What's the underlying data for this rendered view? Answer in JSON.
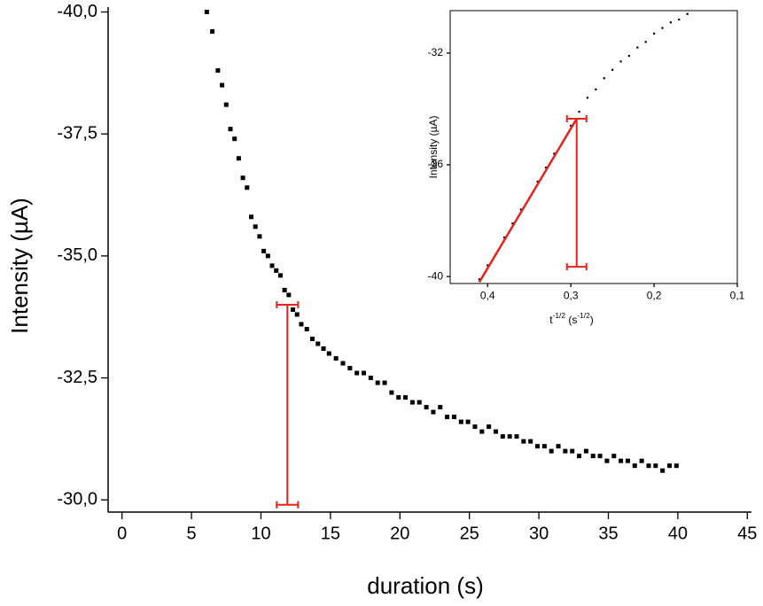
{
  "chart_data": [
    {
      "type": "scatter",
      "x_label": "duration (s)",
      "y_label": "Intensity (µA)",
      "color": "#000000",
      "xlim": [
        -1,
        45.3
      ],
      "ylim": [
        -29.75,
        -40.1
      ],
      "xticks": [
        0,
        5,
        10,
        15,
        20,
        25,
        30,
        35,
        40,
        45
      ],
      "yticks": [
        {
          "value": -40,
          "label": "-40,0"
        },
        {
          "value": -37.5,
          "label": "-37,5"
        },
        {
          "value": -35,
          "label": "-35,0"
        },
        {
          "value": -32.5,
          "label": "-32,5"
        },
        {
          "value": -30,
          "label": "-30,0"
        }
      ],
      "x": [
        6.1,
        6.5,
        6.9,
        7.2,
        7.5,
        7.8,
        8.1,
        8.4,
        8.7,
        9.0,
        9.3,
        9.6,
        9.9,
        10.2,
        10.5,
        10.8,
        11.1,
        11.4,
        11.7,
        12.0,
        12.3,
        12.6,
        12.9,
        13.3,
        13.7,
        14.1,
        14.5,
        14.9,
        15.4,
        15.9,
        16.4,
        16.9,
        17.4,
        17.9,
        18.4,
        18.9,
        19.4,
        19.9,
        20.4,
        20.9,
        21.4,
        21.9,
        22.4,
        22.9,
        23.4,
        23.9,
        24.4,
        24.9,
        25.4,
        25.9,
        26.4,
        26.9,
        27.4,
        27.9,
        28.4,
        28.9,
        29.4,
        29.9,
        30.4,
        30.9,
        31.4,
        31.9,
        32.4,
        32.9,
        33.4,
        33.9,
        34.4,
        34.9,
        35.4,
        35.9,
        36.4,
        36.9,
        37.4,
        37.9,
        38.4,
        38.9,
        39.4,
        39.9
      ],
      "values": [
        -40.0,
        -39.6,
        -38.8,
        -38.5,
        -38.1,
        -37.6,
        -37.4,
        -37.0,
        -36.6,
        -36.4,
        -35.8,
        -35.6,
        -35.4,
        -35.1,
        -35.0,
        -34.8,
        -34.7,
        -34.6,
        -34.3,
        -34.2,
        -33.9,
        -33.8,
        -33.6,
        -33.5,
        -33.3,
        -33.2,
        -33.1,
        -33.0,
        -32.9,
        -32.8,
        -32.7,
        -32.6,
        -32.6,
        -32.5,
        -32.4,
        -32.4,
        -32.2,
        -32.1,
        -32.1,
        -32.0,
        -32.0,
        -31.9,
        -31.8,
        -31.9,
        -31.7,
        -31.7,
        -31.6,
        -31.6,
        -31.5,
        -31.4,
        -31.5,
        -31.4,
        -31.3,
        -31.3,
        -31.3,
        -31.2,
        -31.2,
        -31.1,
        -31.1,
        -31.0,
        -31.1,
        -31.0,
        -31.0,
        -30.9,
        -31.0,
        -30.9,
        -30.9,
        -30.8,
        -30.9,
        -30.8,
        -30.8,
        -30.7,
        -30.8,
        -30.7,
        -30.7,
        -30.6,
        -30.7,
        -30.7
      ],
      "marker": {
        "x": 11.9,
        "from": -34.0,
        "to": -29.9,
        "color": "#e8231c"
      }
    },
    {
      "type": "scatter",
      "x_label": [
        "t",
        "-1/2",
        " (s",
        "-1/2",
        ")"
      ],
      "y_label": "Intensity (µA)",
      "color": "#000000",
      "xlim": [
        0.445,
        0.1
      ],
      "ylim": [
        -40.25,
        -30.48
      ],
      "xticks": [
        {
          "value": 0.4,
          "label": "0,4"
        },
        {
          "value": 0.3,
          "label": "0,3"
        },
        {
          "value": 0.2,
          "label": "0,2"
        },
        {
          "value": 0.1,
          "label": "0,1"
        }
      ],
      "yticks": [
        -32,
        -36,
        -40
      ],
      "x": [
        0.41,
        0.4,
        0.39,
        0.38,
        0.37,
        0.36,
        0.35,
        0.34,
        0.33,
        0.32,
        0.31,
        0.3,
        0.29,
        0.28,
        0.27,
        0.26,
        0.25,
        0.24,
        0.23,
        0.22,
        0.21,
        0.2,
        0.19,
        0.18,
        0.17,
        0.16
      ],
      "values": [
        -40.1,
        -39.6,
        -39.2,
        -38.6,
        -38.1,
        -37.6,
        -37.2,
        -36.6,
        -36.1,
        -35.6,
        -35.2,
        -34.6,
        -34.1,
        -33.6,
        -33.3,
        -32.9,
        -32.6,
        -32.3,
        -32.1,
        -31.8,
        -31.6,
        -31.3,
        -31.1,
        -30.9,
        -30.8,
        -30.6
      ],
      "fit": {
        "x": [
          0.41,
          0.293
        ],
        "values": [
          -40.2,
          -34.35
        ],
        "color": "#e8231c"
      },
      "marker": {
        "x": 0.293,
        "from": -34.35,
        "to": -39.65,
        "color": "#e8231c"
      }
    }
  ]
}
